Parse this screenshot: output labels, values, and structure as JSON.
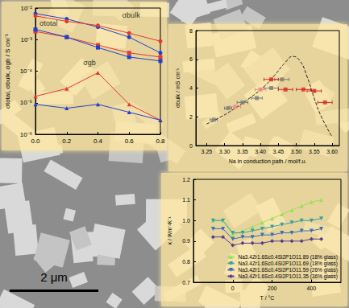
{
  "scale_bar": {
    "label": "2 μm"
  },
  "chart_data": [
    {
      "type": "line",
      "log": "y",
      "grid": false,
      "ylabel": "σtotal, σbulk, σgb / S cm⁻¹",
      "x": [
        0,
        0.2,
        0.4,
        0.6,
        0.8
      ],
      "xlim": [
        0,
        0.8
      ],
      "xticks": [
        {
          "value": 0,
          "label": "0.0"
        },
        0.2,
        0.4,
        0.6,
        0.8
      ],
      "ylim": [
        1e-06,
        0.01
      ],
      "yticks": [
        {
          "value": 1e-06,
          "label": "10⁻⁶"
        },
        {
          "value": 1e-05,
          "label": "10⁻⁵"
        },
        {
          "value": 0.0001,
          "label": "10⁻⁴"
        },
        {
          "value": 0.001,
          "label": "10⁻³"
        },
        {
          "value": 0.01,
          "label": "10⁻²"
        }
      ],
      "series": [
        {
          "color": "#1f3fd1",
          "marker": "circle",
          "values": [
            0.0067,
            0.0045,
            0.0025,
            0.0012,
            0.00038
          ]
        },
        {
          "color": "#e8372c",
          "marker": "circle",
          "values": [
            0.0056,
            0.0038,
            0.0028,
            0.0016,
            0.00089
          ]
        },
        {
          "color": "#e8372c",
          "marker": "square",
          "values": [
            0.0018,
            0.0012,
            0.00067,
            0.00038,
            0.00028
          ]
        },
        {
          "color": "#1f3fd1",
          "marker": "square",
          "values": [
            0.0021,
            0.0012,
            0.00056,
            0.00028,
            0.00021
          ]
        },
        {
          "color": "#e8372c",
          "marker": "triangle",
          "values": [
            1.6e-05,
            2.8e-05,
            8.9e-05,
            8.9e-06,
            2.8e-06
          ]
        },
        {
          "color": "#1f3fd1",
          "marker": "triangle",
          "values": [
            8.9e-06,
            6.7e-06,
            8.9e-06,
            5e-06,
            2.8e-06
          ]
        }
      ],
      "annotations": [
        {
          "text": "σbulk",
          "x": 0.55,
          "y": 0.006
        },
        {
          "text": "σtotal",
          "x": 0.02,
          "y": 0.0032
        },
        {
          "text": "σgb",
          "x": 0.3,
          "y": 0.00018
        }
      ]
    },
    {
      "type": "scatter",
      "grid": false,
      "xlabel": "Na in conduction path / mol/f.u.",
      "ylabel": "σbulk / mS cm⁻¹",
      "xlim": [
        3.22,
        3.62
      ],
      "xticks": [
        3.25,
        {
          "value": 3.3,
          "label": "3.30"
        },
        3.35,
        {
          "value": 3.4,
          "label": "3.40"
        },
        3.45,
        {
          "value": 3.5,
          "label": "3.50"
        },
        3.55,
        {
          "value": 3.6,
          "label": "3.60"
        }
      ],
      "ylim": [
        0,
        8
      ],
      "yticks": [
        0,
        2,
        4,
        6,
        8
      ],
      "series": [
        {
          "type": "line",
          "color": "#222222",
          "marker": "none",
          "line_style": "dashed",
          "x": [
            3.25,
            3.29,
            3.33,
            3.37,
            3.41,
            3.44,
            3.47,
            3.49,
            3.51,
            3.53,
            3.55,
            3.57,
            3.6
          ],
          "values": [
            1.5,
            2.0,
            2.6,
            3.3,
            4.1,
            4.9,
            5.8,
            6.2,
            5.9,
            4.8,
            3.3,
            2.0,
            0.6
          ]
        },
        {
          "type": "scatter",
          "color": "#7a7a7a",
          "marker": "square",
          "x": [
            3.27,
            3.31,
            3.35,
            3.39,
            3.43,
            3.46
          ],
          "values": [
            1.8,
            2.6,
            3.0,
            3.3,
            4.0,
            4.6
          ],
          "xerr": [
            0.01,
            0.01,
            0.015,
            0.015,
            0.02,
            0.02
          ]
        },
        {
          "type": "scatter",
          "color": "#f08a80",
          "marker": "square",
          "x": [
            3.33,
            3.4
          ],
          "values": [
            2.7,
            3.9
          ],
          "xerr": [
            0.015,
            0.015
          ]
        },
        {
          "type": "scatter",
          "color": "#d9281e",
          "marker": "square",
          "x": [
            3.43,
            3.47,
            3.52,
            3.55,
            3.58
          ],
          "values": [
            4.6,
            3.9,
            3.9,
            3.8,
            3.0
          ],
          "xerr": [
            0.02,
            0.02,
            0.02,
            0.02,
            0.02
          ]
        }
      ]
    },
    {
      "type": "line",
      "grid": false,
      "legend": "lower right",
      "xlabel": "T / °C",
      "ylabel": "κ / Wm⁻¹K⁻¹",
      "x": [
        -100,
        -50,
        0,
        50,
        100,
        150,
        200,
        250,
        300,
        350,
        400,
        450
      ],
      "xlim": [
        -200,
        550
      ],
      "xticks": [
        0,
        200,
        400
      ],
      "ylim": [
        0.7,
        1.2
      ],
      "yticks": [
        0.7,
        0.8,
        0.9,
        {
          "value": 1,
          "label": "1.0"
        },
        1.1,
        1.2
      ],
      "series": [
        {
          "name": "Na3.4Zr1.6Sc0.4Si2P1O11.89 (18% glass)",
          "color": "#9be05a",
          "marker": "triangle",
          "values": [
            1.0,
            1.0,
            0.93,
            0.95,
            0.97,
            0.99,
            1.01,
            1.03,
            1.05,
            1.07,
            1.09,
            1.1
          ]
        },
        {
          "name": "Na3.4Zr1.6Sc0.4Si2P1O11.69 (18% glass)",
          "color": "#3aa0a0",
          "marker": "triangle-down",
          "values": [
            1.0,
            1.0,
            0.94,
            0.94,
            0.95,
            0.96,
            0.97,
            0.98,
            0.99,
            1.0,
            1.0,
            1.01
          ]
        },
        {
          "name": "Na3.4Zr1.6Sc0.4Si2P1O11.59 (26% glass)",
          "color": "#3f6fb5",
          "marker": "triangle-down",
          "values": [
            0.96,
            0.96,
            0.91,
            0.92,
            0.92,
            0.93,
            0.93,
            0.94,
            0.94,
            0.95,
            0.95,
            0.96
          ]
        },
        {
          "name": "Na3.4Zr1.6Sc0.4Si2P1O11.35 (36% glass)",
          "color": "#5b3c8c",
          "marker": "diamond",
          "values": [
            0.92,
            0.92,
            0.88,
            0.89,
            0.89,
            0.89,
            0.9,
            0.9,
            0.9,
            0.9,
            0.91,
            0.91
          ]
        }
      ]
    }
  ]
}
